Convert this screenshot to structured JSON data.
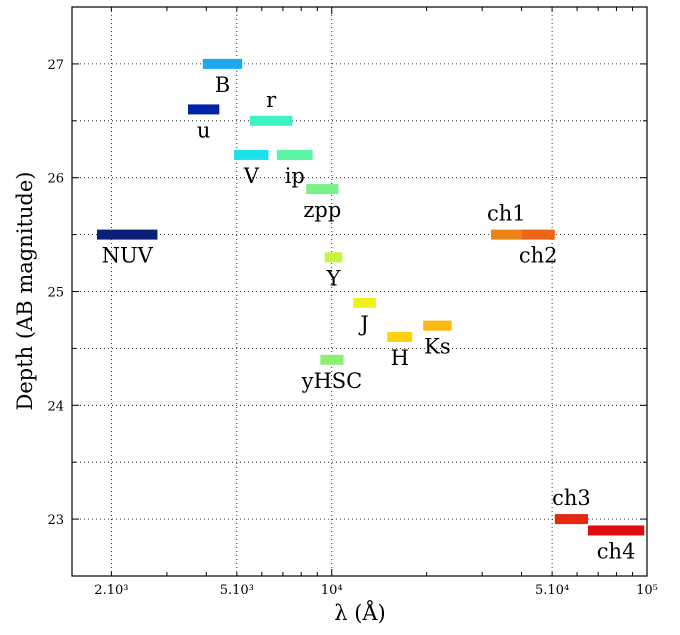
{
  "chart_data": {
    "type": "scatter",
    "xlabel": "λ (Å)",
    "ylabel": "Depth (AB magnitude)",
    "xscale": "log",
    "xlim": [
      1500,
      100000
    ],
    "ylim": [
      22.5,
      27.5
    ],
    "grid": true,
    "xticks": [
      {
        "value": 2000,
        "label": "2.10³"
      },
      {
        "value": 5000,
        "label": "5.10³"
      },
      {
        "value": 10000,
        "label": "10⁴"
      },
      {
        "value": 50000,
        "label": "5.10⁴"
      },
      {
        "value": 100000,
        "label": "10⁵"
      }
    ],
    "yticks": [
      {
        "value": 23,
        "label": "23"
      },
      {
        "value": 24,
        "label": "24"
      },
      {
        "value": 25,
        "label": "25"
      },
      {
        "value": 26,
        "label": "26"
      },
      {
        "value": 27,
        "label": "27"
      }
    ],
    "bands": [
      {
        "name": "NUV",
        "x_min": 1800,
        "x_max": 2800,
        "depth": 25.5,
        "color": "#0a1e7a",
        "label_pos": "below"
      },
      {
        "name": "u",
        "x_min": 3500,
        "x_max": 4400,
        "depth": 26.6,
        "color": "#0022aa",
        "label_pos": "below"
      },
      {
        "name": "B",
        "x_min": 3900,
        "x_max": 5200,
        "depth": 27.0,
        "color": "#1ea8ee",
        "label_pos": "below"
      },
      {
        "name": "V",
        "x_min": 4900,
        "x_max": 6300,
        "depth": 26.2,
        "color": "#1ae0ea",
        "label_pos": "below"
      },
      {
        "name": "r",
        "x_min": 5500,
        "x_max": 7500,
        "depth": 26.5,
        "color": "#3ef2c4",
        "label_pos": "above"
      },
      {
        "name": "ip",
        "x_min": 6700,
        "x_max": 8700,
        "depth": 26.2,
        "color": "#5ef4a8",
        "label_pos": "below"
      },
      {
        "name": "zpp",
        "x_min": 8300,
        "x_max": 10500,
        "depth": 25.9,
        "color": "#78f288",
        "label_pos": "below"
      },
      {
        "name": "Y",
        "x_min": 9500,
        "x_max": 10800,
        "depth": 25.3,
        "color": "#c8f43c",
        "label_pos": "below"
      },
      {
        "name": "yHSC",
        "x_min": 9200,
        "x_max": 10900,
        "depth": 24.4,
        "color": "#8af070",
        "label_pos": "below"
      },
      {
        "name": "J",
        "x_min": 11700,
        "x_max": 13800,
        "depth": 24.9,
        "color": "#f2f01a",
        "label_pos": "below"
      },
      {
        "name": "H",
        "x_min": 15000,
        "x_max": 18000,
        "depth": 24.6,
        "color": "#fed210",
        "label_pos": "below"
      },
      {
        "name": "Ks",
        "x_min": 19500,
        "x_max": 24000,
        "depth": 24.7,
        "color": "#fdb912",
        "label_pos": "below"
      },
      {
        "name": "ch1",
        "x_min": 32000,
        "x_max": 40000,
        "depth": 25.5,
        "color": "#ee8418",
        "label_pos": "above"
      },
      {
        "name": "ch2",
        "x_min": 40000,
        "x_max": 51000,
        "depth": 25.5,
        "color": "#ec6416",
        "label_pos": "below"
      },
      {
        "name": "ch3",
        "x_min": 51000,
        "x_max": 65000,
        "depth": 23.0,
        "color": "#e32a0e",
        "label_pos": "above"
      },
      {
        "name": "ch4",
        "x_min": 65000,
        "x_max": 98000,
        "depth": 22.9,
        "color": "#de0c0c",
        "label_pos": "below"
      }
    ]
  }
}
